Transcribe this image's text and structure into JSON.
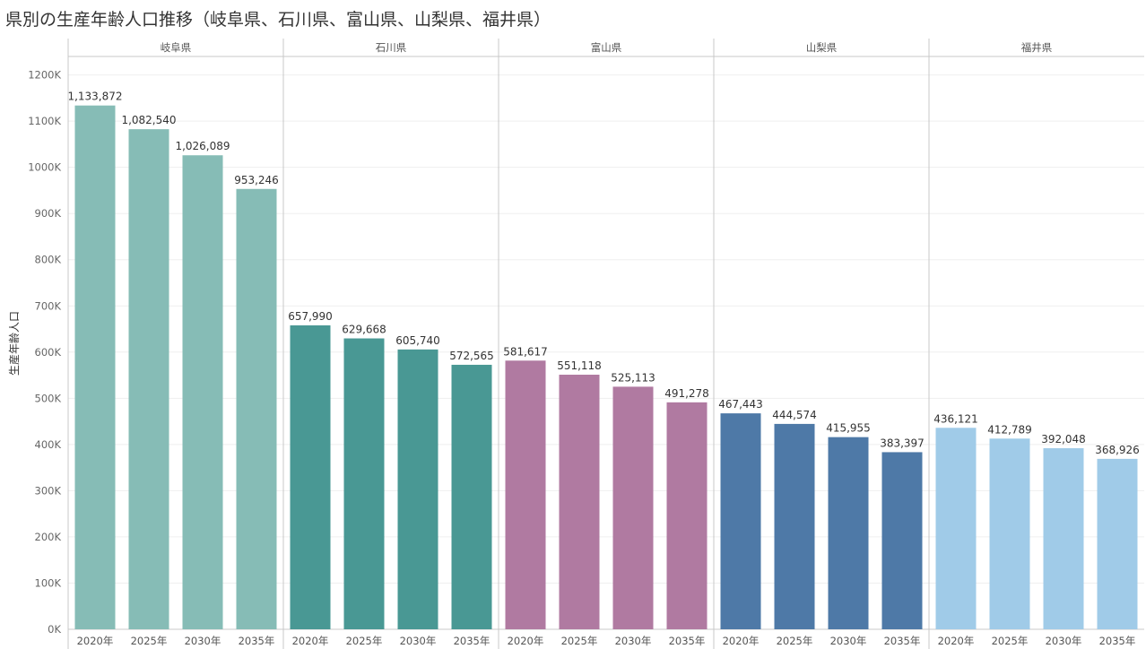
{
  "chart_data": {
    "type": "bar",
    "title": "県別の生産年齢人口推移（岐阜県、石川県、富山県、山梨県、福井県）",
    "ylabel": "生産年齢人口",
    "xlabel": "",
    "ylim": [
      0,
      1240000
    ],
    "yticks": [
      0,
      100000,
      200000,
      300000,
      400000,
      500000,
      600000,
      700000,
      800000,
      900000,
      1000000,
      1100000,
      1200000
    ],
    "ytick_labels": [
      "0K",
      "100K",
      "200K",
      "300K",
      "400K",
      "500K",
      "600K",
      "700K",
      "800K",
      "900K",
      "1000K",
      "1100K",
      "1200K"
    ],
    "categories": [
      "2020年",
      "2025年",
      "2030年",
      "2035年"
    ],
    "panels": [
      {
        "name": "岐阜県",
        "color": "#86bcb6",
        "values": [
          1133872,
          1082540,
          1026089,
          953246
        ],
        "labels": [
          "1,133,872",
          "1,082,540",
          "1,026,089",
          "953,246"
        ]
      },
      {
        "name": "石川県",
        "color": "#499894",
        "values": [
          657990,
          629668,
          605740,
          572565
        ],
        "labels": [
          "657,990",
          "629,668",
          "605,740",
          "572,565"
        ]
      },
      {
        "name": "富山県",
        "color": "#b07aa1",
        "values": [
          581617,
          551118,
          525113,
          491278
        ],
        "labels": [
          "581,617",
          "551,118",
          "525,113",
          "491,278"
        ]
      },
      {
        "name": "山梨県",
        "color": "#4e79a7",
        "values": [
          467443,
          444574,
          415955,
          383397
        ],
        "labels": [
          "467,443",
          "444,574",
          "415,955",
          "383,397"
        ]
      },
      {
        "name": "福井県",
        "color": "#a0cbe8",
        "values": [
          436121,
          412789,
          392048,
          368926
        ],
        "labels": [
          "436,121",
          "412,789",
          "392,048",
          "368,926"
        ]
      }
    ]
  }
}
